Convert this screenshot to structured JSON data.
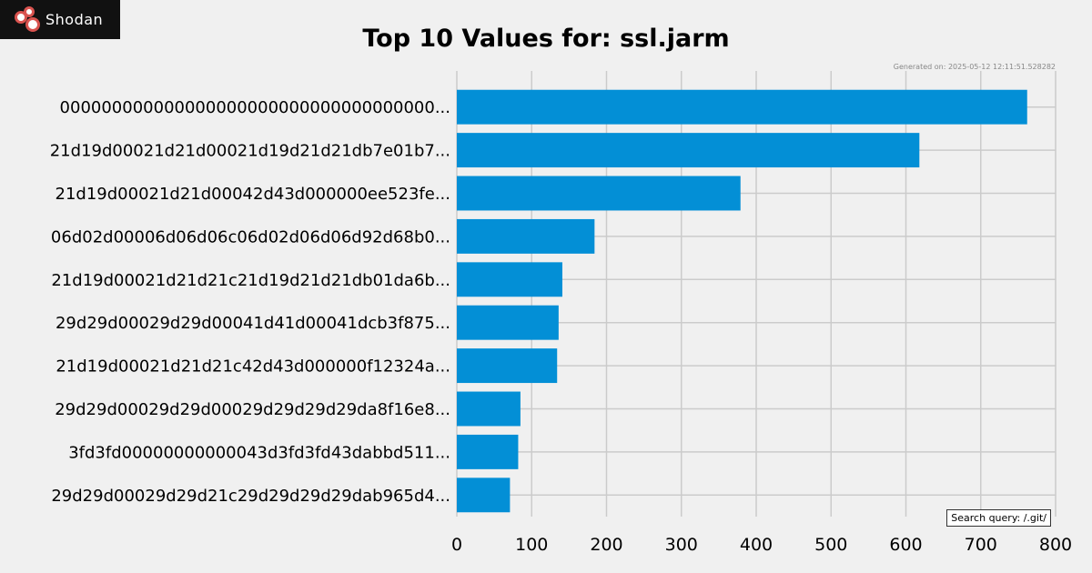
{
  "brand": {
    "name": "Shodan",
    "logo_icon": "shodan-logo-icon"
  },
  "footer": {
    "generated": "Generated on: 2025-05-12 12:11:51.528282",
    "query": "Search query: /.git/"
  },
  "colors": {
    "bar": "#038fd6",
    "grid": "#cbcbcb",
    "background": "#f0f0f0"
  },
  "chart_data": {
    "type": "bar",
    "orientation": "horizontal",
    "title": "Top 10 Values for: ssl.jarm",
    "xlabel": "",
    "ylabel": "",
    "xlim": [
      0,
      800
    ],
    "xticks": [
      0,
      100,
      200,
      300,
      400,
      500,
      600,
      700,
      800
    ],
    "grid": true,
    "categories": [
      "000000000000000000000000000000000000...",
      "21d19d00021d21d00021d19d21d21db7e01b7...",
      "21d19d00021d21d00042d43d000000ee523fe...",
      "06d02d00006d06d06c06d02d06d06d92d68b0...",
      "21d19d00021d21d21c21d19d21d21db01da6b...",
      "29d29d00029d29d00041d41d00041dcb3f875...",
      "21d19d00021d21d21c42d43d000000f12324a...",
      "29d29d00029d29d00029d29d29d29da8f16e8...",
      "3fd3fd00000000000043d3fd3fd43dabbd511...",
      "29d29d00029d29d21c29d29d29d29dab965d4..."
    ],
    "values": [
      762,
      618,
      379,
      184,
      141,
      136,
      134,
      85,
      82,
      71
    ]
  }
}
